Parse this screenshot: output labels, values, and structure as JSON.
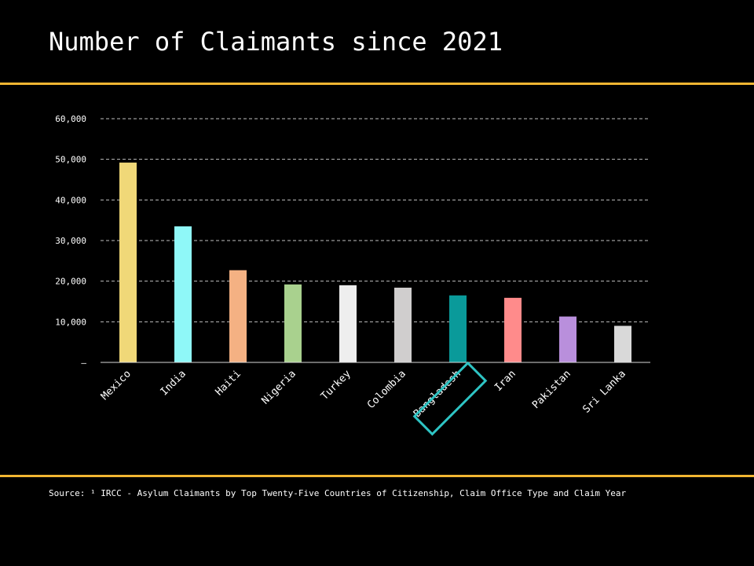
{
  "title": "Number of Claimants since 2021",
  "source": "Source: ¹ IRCC - Asylum Claimants by Top Twenty-Five Countries of Citizenship, Claim Office Type and Claim Year",
  "colors": {
    "accent_rule": "#f2b632",
    "highlight_box": "#2ec4c4",
    "gridline": "#bfbfbf"
  },
  "chart_data": {
    "type": "bar",
    "title": "Number of Claimants since 2021",
    "xlabel": "",
    "ylabel": "",
    "ylim": [
      0,
      60000
    ],
    "grid": true,
    "y_ticks": [
      {
        "value": 0,
        "label": "–"
      },
      {
        "value": 10000,
        "label": "10,000"
      },
      {
        "value": 20000,
        "label": "20,000"
      },
      {
        "value": 30000,
        "label": "30,000"
      },
      {
        "value": 40000,
        "label": "40,000"
      },
      {
        "value": 50000,
        "label": "50,000"
      },
      {
        "value": 60000,
        "label": "60,000"
      }
    ],
    "categories": [
      "Mexico",
      "India",
      "Haiti",
      "Nigeria",
      "Turkey",
      "Colombia",
      "Bangladesh",
      "Iran",
      "Pakistan",
      "Sri Lanka"
    ],
    "values": [
      49200,
      33500,
      22700,
      19200,
      19000,
      18400,
      16500,
      15900,
      11300,
      9000
    ],
    "bar_colors": [
      "#f0d878",
      "#8ff8f8",
      "#f4b183",
      "#a9d18e",
      "#eeeeee",
      "#d0cece",
      "#0a9a9a",
      "#ff8b8b",
      "#b98fdc",
      "#d9d9d9"
    ],
    "highlighted_category": "Bangladesh"
  }
}
